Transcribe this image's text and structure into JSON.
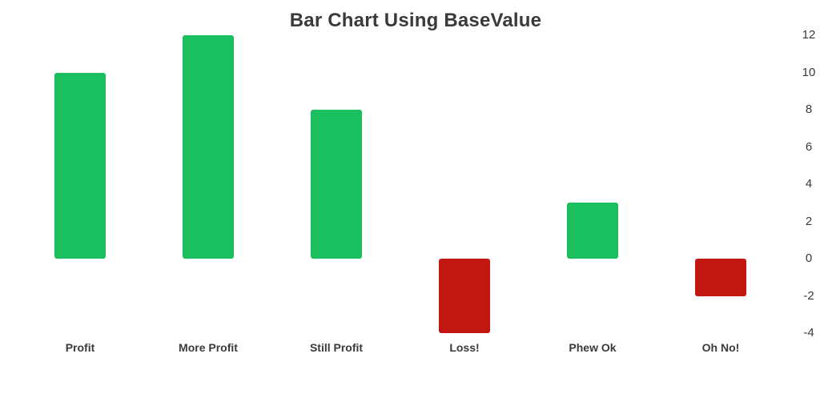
{
  "chart_data": {
    "type": "bar",
    "title": "Bar Chart Using BaseValue",
    "categories": [
      "Profit",
      "More Profit",
      "Still Profit",
      "Loss!",
      "Phew Ok",
      "Oh No!"
    ],
    "values": [
      10,
      12,
      8,
      -4,
      3,
      -2
    ],
    "base_value": 0,
    "y_ticks": [
      12,
      10,
      8,
      6,
      4,
      2,
      0,
      -2,
      -4
    ],
    "ylim": [
      -4,
      12
    ],
    "axis_side": "right",
    "grid": false,
    "legend": "none",
    "positive_color": "#1ac05f",
    "negative_color": "#c21613",
    "text_color": "#3a3a3a"
  }
}
